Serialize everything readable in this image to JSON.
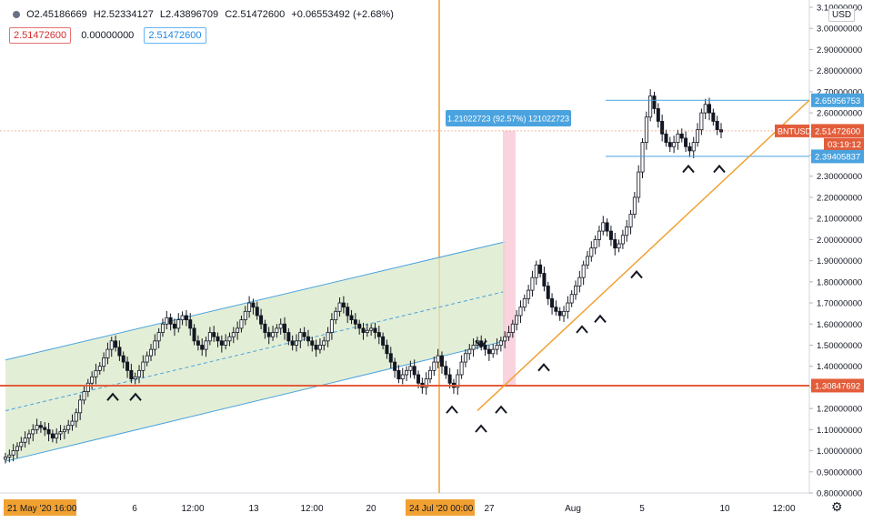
{
  "legend": {
    "open": "O2.45186669",
    "high": "H2.52334127",
    "low": "L2.43896709",
    "close": "C2.51472600",
    "change": "+0.06553492 (+2.68%)",
    "indicator_values": [
      "2.51472600",
      "0.00000000",
      "2.51472600"
    ]
  },
  "currency_button": "USD",
  "settings_icon": "gear-icon",
  "colors": {
    "up": "#131722",
    "channel_line": "#4aa3df",
    "channel_fill": "#d9e8c8",
    "trendline": "#f0a132",
    "support": "#e35d3b",
    "range_fill": "#f8c9d6",
    "label_blue": "#4aa3df",
    "label_red": "#e35d3b",
    "time_marker": "#f0a132"
  },
  "chart_data": {
    "type": "candlestick",
    "symbol": "BNTUSD",
    "ylim": [
      0.8,
      3.1
    ],
    "yticks": [
      "3.10000000",
      "3.00000000",
      "2.90000000",
      "2.80000000",
      "2.70000000",
      "2.60000000",
      "2.50000000",
      "2.40000000",
      "2.30000000",
      "2.20000000",
      "2.10000000",
      "2.00000000",
      "1.90000000",
      "1.80000000",
      "1.70000000",
      "1.60000000",
      "1.50000000",
      "1.40000000",
      "1.30000000",
      "1.20000000",
      "1.10000000",
      "1.00000000",
      "0.90000000",
      "0.80000000"
    ],
    "xticks": [
      "6",
      "12:00",
      "13",
      "12:00",
      "20",
      "27",
      "Aug",
      "5",
      "10",
      "12:00"
    ],
    "x_highlight_left": "21 May '20   16:00",
    "x_highlight_marker": "24 Jul '20   00:00",
    "price_labels": {
      "current_symbol": "BNTUSD",
      "current_price": "2.51472600",
      "countdown": "03:19:12",
      "resistance": "2.65956753",
      "support_range": "2.39405837",
      "horizontal_support": "1.30847692"
    },
    "range_measure": "1.21022723 (92.57%) 121022723",
    "key_levels": [
      2.65956753,
      2.514726,
      2.39405837,
      1.30847692
    ],
    "closes": [
      0.97,
      0.98,
      1.0,
      1.02,
      1.04,
      1.06,
      1.08,
      1.1,
      1.12,
      1.11,
      1.1,
      1.08,
      1.06,
      1.08,
      1.09,
      1.1,
      1.12,
      1.14,
      1.18,
      1.24,
      1.28,
      1.32,
      1.35,
      1.38,
      1.4,
      1.44,
      1.48,
      1.52,
      1.49,
      1.45,
      1.42,
      1.38,
      1.34,
      1.35,
      1.38,
      1.42,
      1.45,
      1.48,
      1.52,
      1.56,
      1.6,
      1.63,
      1.6,
      1.58,
      1.62,
      1.64,
      1.62,
      1.58,
      1.52,
      1.5,
      1.48,
      1.52,
      1.56,
      1.54,
      1.52,
      1.5,
      1.52,
      1.54,
      1.56,
      1.58,
      1.62,
      1.66,
      1.7,
      1.68,
      1.64,
      1.6,
      1.56,
      1.54,
      1.56,
      1.58,
      1.6,
      1.56,
      1.52,
      1.5,
      1.52,
      1.56,
      1.54,
      1.52,
      1.5,
      1.48,
      1.5,
      1.52,
      1.56,
      1.62,
      1.66,
      1.7,
      1.68,
      1.64,
      1.62,
      1.6,
      1.58,
      1.56,
      1.57,
      1.58,
      1.56,
      1.54,
      1.5,
      1.46,
      1.42,
      1.38,
      1.34,
      1.36,
      1.38,
      1.4,
      1.36,
      1.32,
      1.3,
      1.34,
      1.38,
      1.42,
      1.45,
      1.4,
      1.36,
      1.32,
      1.3,
      1.36,
      1.42,
      1.46,
      1.48,
      1.5,
      1.52,
      1.5,
      1.48,
      1.46,
      1.48,
      1.5,
      1.52,
      1.54,
      1.56,
      1.6,
      1.64,
      1.68,
      1.72,
      1.76,
      1.82,
      1.88,
      1.84,
      1.78,
      1.72,
      1.68,
      1.66,
      1.64,
      1.66,
      1.7,
      1.74,
      1.78,
      1.82,
      1.88,
      1.92,
      1.96,
      2.0,
      2.04,
      2.08,
      2.04,
      2.0,
      1.96,
      1.98,
      2.02,
      2.06,
      2.12,
      2.2,
      2.32,
      2.46,
      2.58,
      2.68,
      2.62,
      2.56,
      2.5,
      2.46,
      2.44,
      2.46,
      2.5,
      2.48,
      2.44,
      2.42,
      2.46,
      2.52,
      2.6,
      2.64,
      2.6,
      2.56,
      2.52,
      2.51
    ]
  }
}
